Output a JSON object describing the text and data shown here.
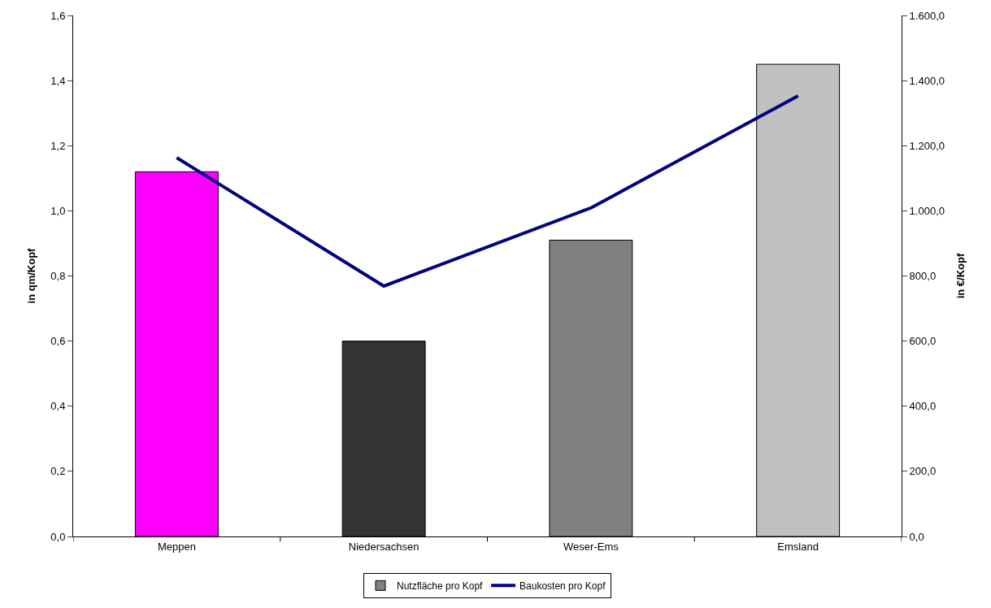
{
  "chart_data": {
    "type": "bar",
    "categories": [
      "Meppen",
      "Niedersachsen",
      "Weser-Ems",
      "Emsland"
    ],
    "ylabel": "in qm/Kopf",
    "y2label": "in €/Kopf",
    "series": [
      {
        "name": "Nutzfläche pro Kopf",
        "color": "#808080",
        "colors": [
          "#ff00ff",
          "#333333",
          "#808080",
          "#c0c0c0"
        ],
        "values": [
          1.12,
          0.6,
          0.91,
          1.45
        ]
      },
      {
        "name": "Baukosten pro Kopf",
        "type": "line",
        "axis": "y2",
        "color": "#000080",
        "values": [
          1163,
          769,
          1009,
          1353
        ]
      }
    ],
    "ylim": [
      0,
      1.6
    ],
    "yticks": [
      {
        "value": 0,
        "label": "0,0"
      },
      {
        "value": 0.2,
        "label": "0,2"
      },
      {
        "value": 0.4,
        "label": "0,4"
      },
      {
        "value": 0.6,
        "label": "0,6"
      },
      {
        "value": 0.8,
        "label": "0,8"
      },
      {
        "value": 1.0,
        "label": "1,0"
      },
      {
        "value": 1.2,
        "label": "1,2"
      },
      {
        "value": 1.4,
        "label": "1,4"
      },
      {
        "value": 1.6,
        "label": "1,6"
      }
    ],
    "y2lim": [
      0,
      1600
    ],
    "y2ticks": [
      {
        "value": 0,
        "label": "0,0"
      },
      {
        "value": 200,
        "label": "200,0"
      },
      {
        "value": 400,
        "label": "400,0"
      },
      {
        "value": 600,
        "label": "600,0"
      },
      {
        "value": 800,
        "label": "800,0"
      },
      {
        "value": 1000,
        "label": "1.000,0"
      },
      {
        "value": 1200,
        "label": "1.200,0"
      },
      {
        "value": 1400,
        "label": "1.400,0"
      },
      {
        "value": 1600,
        "label": "1.600,0"
      }
    ],
    "legend": "bottom",
    "marker": "none",
    "line_style": "solid"
  }
}
